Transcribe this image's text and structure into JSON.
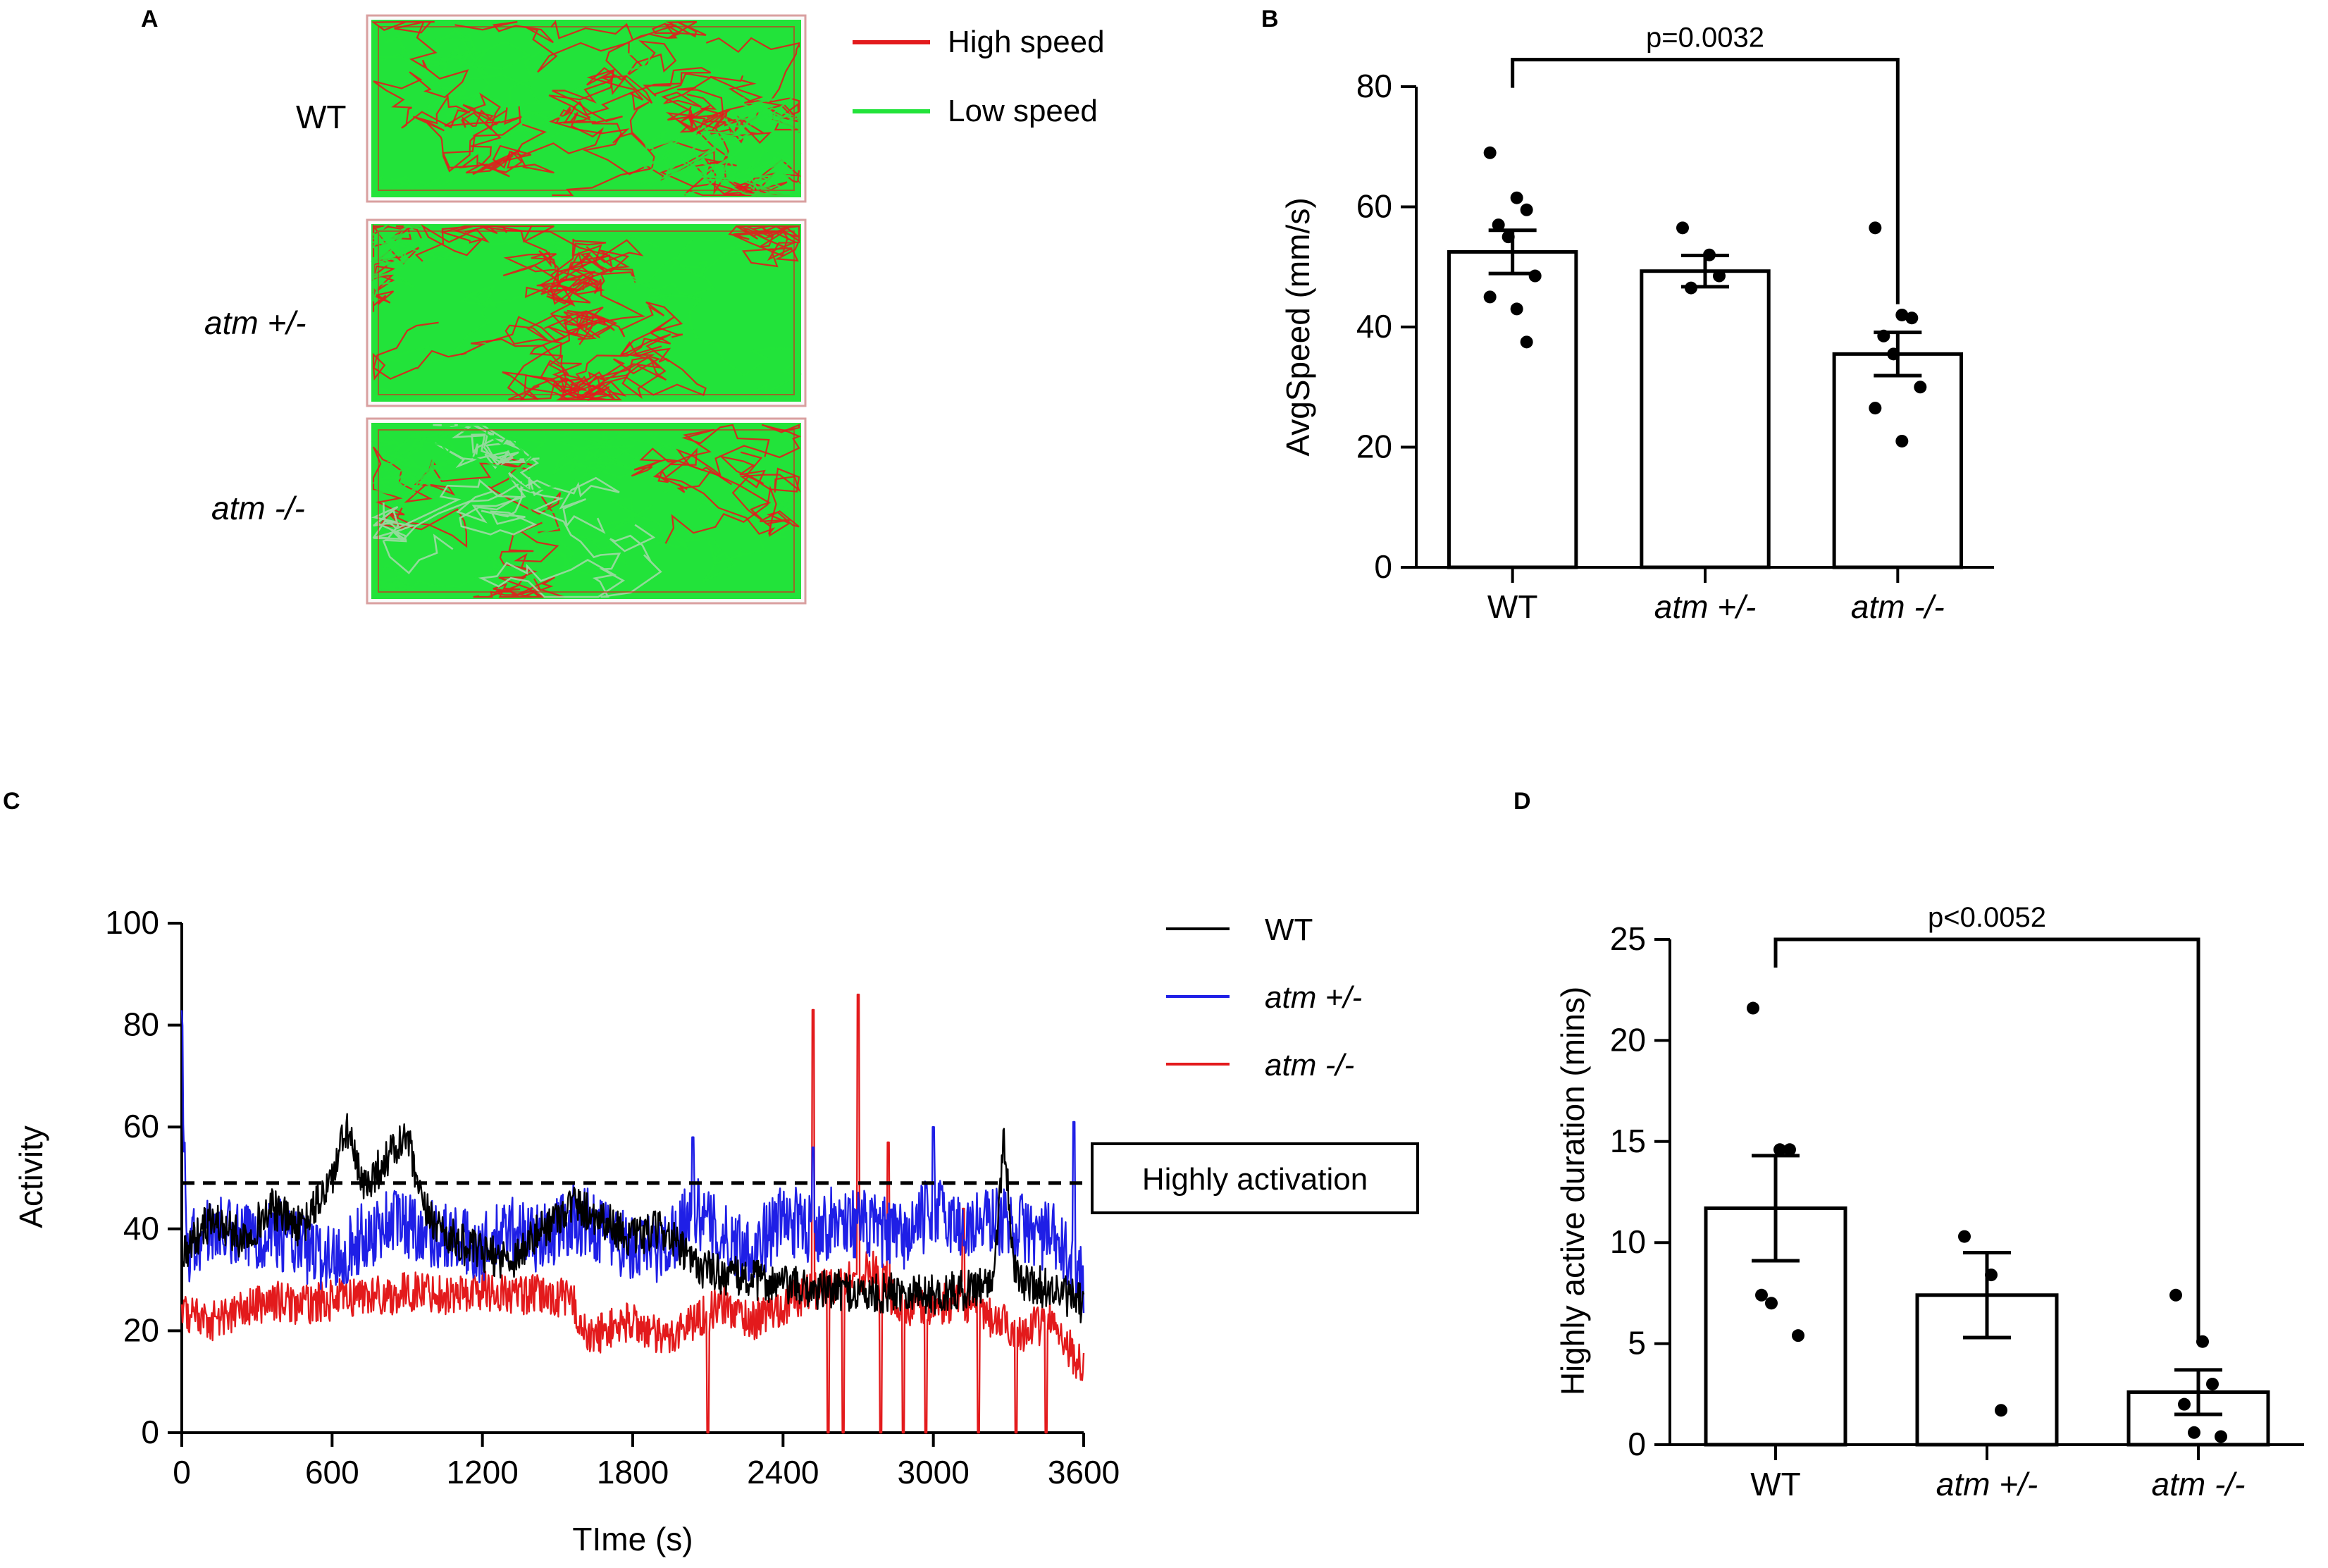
{
  "panels": {
    "A": {
      "label": "A",
      "rows": [
        {
          "name": "WT",
          "italic": false
        },
        {
          "name": "atm +/-",
          "italic": true
        },
        {
          "name": "atm -/-",
          "italic": true
        }
      ],
      "legend": [
        {
          "label": "High speed",
          "color": "#e31a1c"
        },
        {
          "label": "Low speed",
          "color": "#22e33a"
        }
      ],
      "track_colors": {
        "high": "#e31a1c",
        "low": "#22e33a",
        "border": "#d9a0a0"
      }
    },
    "C": {
      "label": "C"
    },
    "B": {
      "label": "B"
    },
    "D": {
      "label": "D"
    }
  },
  "chart_data": [
    {
      "id": "B",
      "type": "bar",
      "title": "",
      "xlabel": "",
      "ylabel": "AvgSpeed (mm/s)",
      "ylim": [
        0,
        80
      ],
      "yticks": [
        "0",
        "20",
        "40",
        "60",
        "80"
      ],
      "categories": [
        "WT",
        "atm +/-",
        "atm -/-"
      ],
      "category_italic": [
        false,
        true,
        true
      ],
      "values": [
        52.5,
        49.3,
        35.5
      ],
      "sem": [
        3.6,
        2.6,
        3.6
      ],
      "points": [
        [
          69,
          61.5,
          59.5,
          57,
          55,
          48.5,
          45,
          43,
          37.5
        ],
        [
          56.5,
          52,
          48.5,
          46.5
        ],
        [
          56.5,
          42,
          41.5,
          38.5,
          35.5,
          30,
          26.5,
          21
        ]
      ],
      "annotation": {
        "text": "p=0.0032",
        "from": 0,
        "to": 2,
        "y": 84.5
      }
    },
    {
      "id": "C",
      "type": "line",
      "title": "",
      "xlabel": "TIme (s)",
      "ylabel": "Activity",
      "xlim": [
        0,
        3600
      ],
      "ylim": [
        0,
        100
      ],
      "xticks": [
        "0",
        "600",
        "1200",
        "1800",
        "2400",
        "3000",
        "3600"
      ],
      "yticks": [
        "0",
        "20",
        "40",
        "60",
        "80",
        "100"
      ],
      "threshold": {
        "value": 49,
        "label": "Highly activation"
      },
      "series": [
        {
          "name": "WT",
          "italic": false,
          "color": "#000000",
          "anchors": [
            [
              0,
              35
            ],
            [
              120,
              42
            ],
            [
              240,
              38
            ],
            [
              360,
              44
            ],
            [
              480,
              40
            ],
            [
              600,
              50
            ],
            [
              660,
              60
            ],
            [
              720,
              48
            ],
            [
              840,
              55
            ],
            [
              900,
              58
            ],
            [
              960,
              44
            ],
            [
              1080,
              38
            ],
            [
              1200,
              35
            ],
            [
              1320,
              34
            ],
            [
              1440,
              40
            ],
            [
              1560,
              45
            ],
            [
              1680,
              42
            ],
            [
              1800,
              38
            ],
            [
              1920,
              40
            ],
            [
              2040,
              33
            ],
            [
              2160,
              31
            ],
            [
              2280,
              30
            ],
            [
              2400,
              29
            ],
            [
              2520,
              28
            ],
            [
              2640,
              28
            ],
            [
              2760,
              27
            ],
            [
              2880,
              28
            ],
            [
              3000,
              27
            ],
            [
              3120,
              28
            ],
            [
              3240,
              30
            ],
            [
              3280,
              58
            ],
            [
              3330,
              30
            ],
            [
              3480,
              28
            ],
            [
              3600,
              25
            ]
          ],
          "noise": 4,
          "spikes": []
        },
        {
          "name": "atm +/-",
          "italic": true,
          "color": "#1f1fe6",
          "anchors": [
            [
              0,
              80
            ],
            [
              20,
              36
            ],
            [
              120,
              40
            ],
            [
              240,
              38
            ],
            [
              360,
              40
            ],
            [
              480,
              36
            ],
            [
              600,
              34
            ],
            [
              720,
              38
            ],
            [
              840,
              42
            ],
            [
              960,
              40
            ],
            [
              1080,
              38
            ],
            [
              1200,
              36
            ],
            [
              1320,
              40
            ],
            [
              1440,
              38
            ],
            [
              1560,
              42
            ],
            [
              1680,
              40
            ],
            [
              1800,
              36
            ],
            [
              1920,
              36
            ],
            [
              2040,
              44
            ],
            [
              2160,
              38
            ],
            [
              2280,
              36
            ],
            [
              2400,
              42
            ],
            [
              2520,
              40
            ],
            [
              2640,
              42
            ],
            [
              2760,
              40
            ],
            [
              2880,
              38
            ],
            [
              3000,
              44
            ],
            [
              3120,
              40
            ],
            [
              3240,
              42
            ],
            [
              3360,
              40
            ],
            [
              3480,
              38
            ],
            [
              3600,
              30
            ]
          ],
          "noise": 7,
          "spikes": [
            [
              2040,
              58
            ],
            [
              2520,
              56
            ],
            [
              3000,
              60
            ],
            [
              3560,
              61
            ]
          ]
        },
        {
          "name": "atm -/-",
          "italic": true,
          "color": "#e31a1c",
          "anchors": [
            [
              0,
              24
            ],
            [
              120,
              22
            ],
            [
              240,
              24
            ],
            [
              360,
              26
            ],
            [
              480,
              25
            ],
            [
              600,
              26
            ],
            [
              720,
              27
            ],
            [
              840,
              27
            ],
            [
              960,
              28
            ],
            [
              1080,
              27
            ],
            [
              1200,
              28
            ],
            [
              1320,
              27
            ],
            [
              1440,
              27
            ],
            [
              1560,
              26
            ],
            [
              1620,
              18
            ],
            [
              1680,
              20
            ],
            [
              1800,
              22
            ],
            [
              1920,
              18
            ],
            [
              2040,
              22
            ],
            [
              2160,
              25
            ],
            [
              2280,
              22
            ],
            [
              2400,
              25
            ],
            [
              2520,
              28
            ],
            [
              2640,
              30
            ],
            [
              2760,
              32
            ],
            [
              2880,
              24
            ],
            [
              3000,
              25
            ],
            [
              3120,
              26
            ],
            [
              3240,
              22
            ],
            [
              3360,
              20
            ],
            [
              3480,
              22
            ],
            [
              3600,
              12
            ]
          ],
          "noise": 4,
          "spikes": [
            [
              2520,
              83
            ],
            [
              2700,
              86
            ],
            [
              2580,
              0
            ],
            [
              2640,
              0
            ],
            [
              2790,
              0
            ],
            [
              2880,
              0
            ],
            [
              2970,
              0
            ],
            [
              3180,
              0
            ],
            [
              3330,
              0
            ],
            [
              3450,
              0
            ],
            [
              2100,
              0
            ],
            [
              2820,
              57
            ],
            [
              3120,
              44
            ]
          ]
        }
      ]
    },
    {
      "id": "D",
      "type": "bar",
      "title": "",
      "xlabel": "",
      "ylabel": "Highly active duration (mins)",
      "ylim": [
        0,
        25
      ],
      "yticks": [
        "0",
        "5",
        "10",
        "15",
        "20",
        "25"
      ],
      "categories": [
        "WT",
        "atm +/-",
        "atm -/-"
      ],
      "category_italic": [
        false,
        true,
        true
      ],
      "values": [
        11.7,
        7.4,
        2.6
      ],
      "sem": [
        2.6,
        2.1,
        1.1
      ],
      "points": [
        [
          21.6,
          14.6,
          14.6,
          7.4,
          7.0,
          5.4
        ],
        [
          10.3,
          8.4,
          1.7
        ],
        [
          7.4,
          5.1,
          3.0,
          2.0,
          0.6,
          0.4
        ]
      ],
      "annotation": {
        "text": "p<0.0052",
        "from": 0,
        "to": 2,
        "y": 25.0
      }
    }
  ]
}
